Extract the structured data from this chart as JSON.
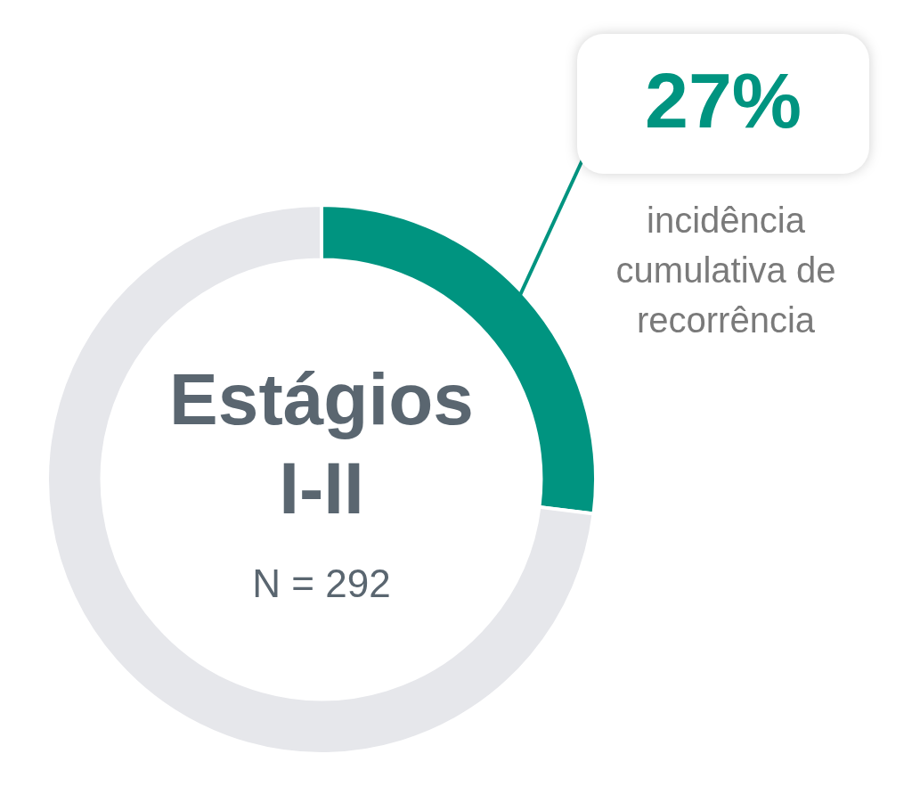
{
  "chart_data": {
    "type": "donut",
    "title": "Estágios I-II",
    "subtitle": "N = 292",
    "categories": [
      null,
      null
    ],
    "values": [
      27,
      73
    ],
    "colors": [
      "#009480",
      "#e6e7eb"
    ],
    "value_labels": [
      "27%",
      null
    ],
    "annotations": [
      "incidência cumulativa de recorrência"
    ],
    "legend": false
  }
}
